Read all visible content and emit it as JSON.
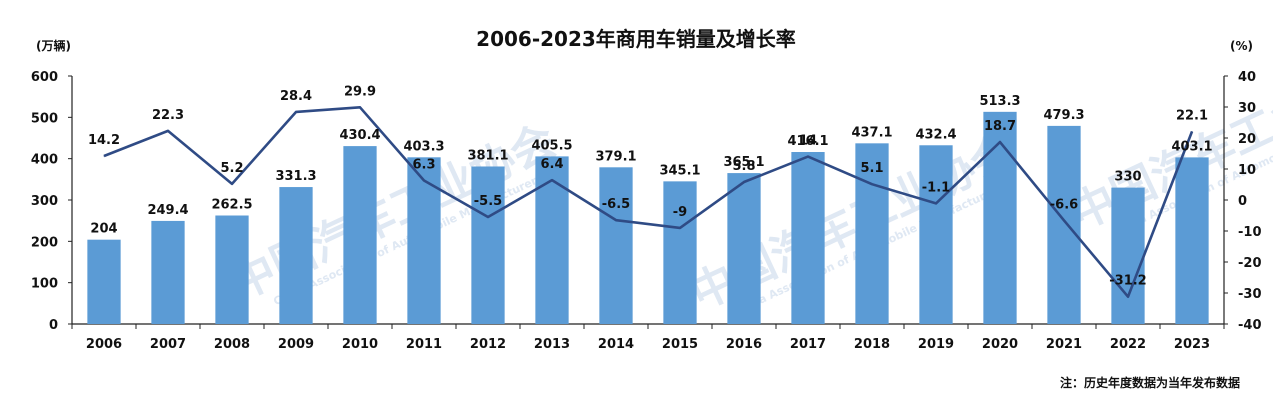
{
  "chart_data": {
    "type": "bar+line",
    "title": "2006-2023年商用车销量及增长率",
    "left_axis_unit": "(万辆)",
    "right_axis_unit": "(%)",
    "categories": [
      "2006",
      "2007",
      "2008",
      "2009",
      "2010",
      "2011",
      "2012",
      "2013",
      "2014",
      "2015",
      "2016",
      "2017",
      "2018",
      "2019",
      "2020",
      "2021",
      "2022",
      "2023"
    ],
    "series": [
      {
        "kind": "bar",
        "axis": "left",
        "values": [
          204,
          249.4,
          262.5,
          331.3,
          430.4,
          403.3,
          381.1,
          405.5,
          379.1,
          345.1,
          365.1,
          416.1,
          437.1,
          432.4,
          513.3,
          479.3,
          330,
          403.1
        ]
      },
      {
        "kind": "line",
        "axis": "right",
        "values": [
          14.2,
          22.3,
          5.2,
          28.4,
          29.9,
          6.3,
          -5.5,
          6.4,
          -6.5,
          -9,
          5.8,
          14,
          5.1,
          -1.1,
          18.7,
          -6.6,
          -31.2,
          22.1
        ]
      }
    ],
    "left_ylim": [
      0,
      600
    ],
    "left_ticks": [
      0,
      100,
      200,
      300,
      400,
      500,
      600
    ],
    "right_ylim": [
      -40,
      40
    ],
    "right_ticks": [
      -40,
      -30,
      -20,
      -10,
      0,
      10,
      20,
      30,
      40
    ],
    "grid": false,
    "legend": "none",
    "colors": {
      "bar": "#5b9bd5",
      "line": "#2f4b85"
    }
  },
  "note": "注：历史年度数据为当年发布数据",
  "watermark": "中国汽车工业协会",
  "watermark_sub": "China Association of Automobile Manufacturers"
}
